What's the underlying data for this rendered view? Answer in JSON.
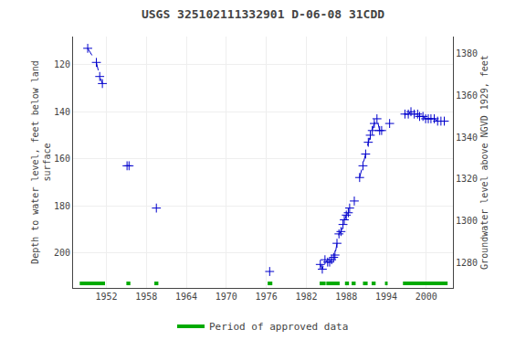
{
  "chart_data": {
    "type": "line",
    "title": "USGS 325102111332901 D-06-08 31CDD",
    "ylabel": "Depth to water level, feet below land\nsurface",
    "y2label": "Groundwater level above NGVD 1929, feet",
    "xlim": [
      1947,
      2004
    ],
    "xticks": [
      1952,
      1958,
      1964,
      1970,
      1976,
      1982,
      1988,
      1994,
      2000
    ],
    "ylim": [
      215,
      108
    ],
    "yticks": [
      120,
      140,
      160,
      180,
      200
    ],
    "y2lim": [
      1268,
      1388
    ],
    "y2ticks": [
      1280,
      1300,
      1320,
      1340,
      1360,
      1380
    ],
    "grid": true,
    "legend": "bottom",
    "series": [
      {
        "color": "#0000CC",
        "marker": "plus",
        "line_style": "dashed",
        "x": [
          1949.2,
          1950.5,
          1951.0,
          1951.4,
          null,
          1955.1,
          1955.4,
          null,
          1959.5,
          null,
          1976.5,
          null,
          1984.1,
          1984.4,
          1984.8,
          1985.2,
          1985.5,
          1985.8,
          1986.1,
          1986.3,
          1986.6,
          1986.9,
          1987.2,
          1987.5,
          1987.7,
          1988.0,
          1988.3,
          1988.5,
          null,
          1989.2,
          null,
          1990.0,
          1990.5,
          1990.9,
          1991.3,
          1991.6,
          1991.9,
          1992.2,
          1992.6,
          1993.0,
          1993.3,
          null,
          1994.5,
          null,
          1996.8,
          1997.3,
          1997.7,
          1998.2,
          1998.7,
          1999.0,
          1999.5,
          1999.9,
          2000.3,
          2000.7,
          2001.2,
          2001.7,
          2002.2,
          2002.7
        ],
        "values": [
          113,
          119,
          125,
          128,
          null,
          163,
          163,
          null,
          181,
          null,
          208,
          null,
          205,
          207,
          203,
          204,
          204,
          203,
          202,
          201,
          196,
          192,
          191,
          188,
          186,
          184,
          183,
          181,
          null,
          178,
          null,
          168,
          163,
          158,
          153,
          150,
          148,
          145,
          143,
          148,
          148,
          null,
          145,
          null,
          141,
          141,
          140,
          141,
          141,
          142,
          142,
          143,
          143,
          143,
          143,
          144,
          144,
          144
        ]
      },
      {
        "name": "Period of approved data",
        "type": "span",
        "color": "#00AA00",
        "spans": [
          [
            1948.0,
            1951.8
          ],
          [
            1955.0,
            1955.6
          ],
          [
            1959.2,
            1959.8
          ],
          [
            1976.2,
            1976.9
          ],
          [
            1984.0,
            1984.9
          ],
          [
            1985.0,
            1987.0
          ],
          [
            1987.8,
            1988.4
          ],
          [
            1988.8,
            1989.4
          ],
          [
            1990.5,
            1991.2
          ],
          [
            1991.8,
            1992.4
          ],
          [
            1993.8,
            1994.2
          ],
          [
            1996.5,
            2003.2
          ]
        ]
      }
    ]
  }
}
